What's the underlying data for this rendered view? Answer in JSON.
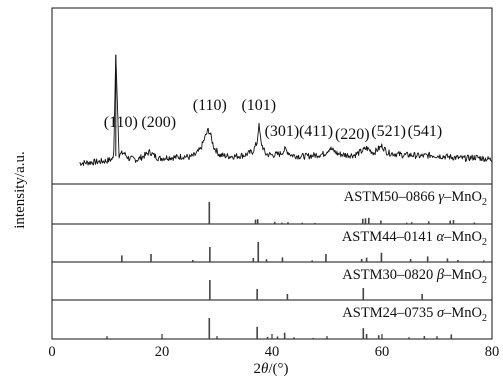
{
  "chart_data": {
    "type": "line",
    "ylabel": "intensity/a.u.",
    "xlabel_prefix": "2",
    "xlabel_theta": "θ",
    "xlabel_suffix": "/(°)",
    "xlim": [
      0,
      80
    ],
    "xticks": [
      "0",
      "20",
      "40",
      "60",
      "80"
    ],
    "grid": false,
    "measured_pattern": {
      "name": "",
      "x": [
        5.0,
        8.0,
        10.0,
        11.2,
        11.6,
        12.2,
        13.0,
        14.0,
        15.5,
        17.0,
        17.8,
        18.4,
        19.5,
        21.0,
        22.5,
        24.0,
        25.0,
        26.0,
        27.0,
        27.8,
        28.4,
        28.8,
        29.4,
        30.5,
        32.0,
        33.5,
        35.0,
        36.5,
        37.3,
        37.6,
        38.0,
        38.8,
        40.0,
        41.5,
        42.4,
        43.5,
        45.0,
        46.5,
        48.0,
        49.5,
        50.5,
        52.0,
        53.5,
        55.0,
        56.2,
        57.2,
        58.5,
        60.0,
        61.0,
        62.5,
        64.0,
        65.5,
        67.0,
        69.0,
        71.0,
        73.0,
        75.0,
        77.0,
        80.0
      ],
      "y": [
        6,
        7,
        8,
        10,
        100,
        13,
        15,
        10,
        9,
        13,
        16,
        13,
        10,
        11,
        11,
        12,
        11,
        13,
        18,
        28,
        35,
        31,
        20,
        13,
        12,
        12,
        13,
        16,
        24,
        40,
        24,
        14,
        13,
        14,
        18,
        13,
        12,
        12,
        13,
        14,
        19,
        14,
        13,
        13,
        16,
        19,
        15,
        21,
        15,
        14,
        13,
        13,
        12,
        13,
        12,
        11,
        10,
        11,
        9
      ]
    },
    "peak_labels": [
      {
        "text": "(110)",
        "x": 12.5
      },
      {
        "text": "(200)",
        "x": 19.4
      },
      {
        "text": "(110)",
        "x": 28.7
      },
      {
        "text": "(101)",
        "x": 37.6
      },
      {
        "text": "(301)",
        "x": 41.8
      },
      {
        "text": "(411)",
        "x": 48.0
      },
      {
        "text": "(220)",
        "x": 54.6
      },
      {
        "text": "(521)",
        "x": 61.2
      },
      {
        "text": "(541)",
        "x": 67.8
      }
    ],
    "reference_patterns": [
      {
        "card": "ASTM50–0866",
        "phase": "γ",
        "compound": "–MnO",
        "subscript": "2",
        "x": [
          28.6,
          37.0,
          37.4,
          40.5,
          41.8,
          42.9,
          45.5,
          47.8,
          56.5,
          57.0,
          57.6,
          59.8,
          64.5,
          65.4,
          68.5,
          72.4,
          73.0,
          76.8
        ],
        "y": [
          100,
          20,
          22,
          10,
          6,
          8,
          6,
          5,
          24,
          26,
          28,
          16,
          6,
          8,
          12,
          16,
          18,
          7
        ]
      },
      {
        "card": "ASTM44–0141",
        "phase": "α",
        "compound": "–MnO",
        "subscript": "2",
        "x": [
          12.7,
          18.0,
          25.6,
          28.7,
          36.6,
          37.5,
          39.0,
          41.9,
          47.3,
          49.8,
          56.3,
          57.2,
          59.9,
          65.2,
          68.3,
          71.9,
          73.8,
          78.5
        ],
        "y": [
          33,
          40,
          10,
          75,
          20,
          100,
          14,
          23,
          8,
          40,
          15,
          22,
          46,
          15,
          28,
          18,
          10,
          8
        ]
      },
      {
        "card": "ASTM30–0820",
        "phase": "β",
        "compound": "–MnO",
        "subscript": "2",
        "x": [
          28.7,
          37.3,
          42.8,
          56.6,
          67.3
        ],
        "y": [
          100,
          55,
          30,
          60,
          30
        ]
      },
      {
        "card": "ASTM24–0735",
        "phase": "σ",
        "compound": "–MnO",
        "subscript": "2",
        "x": [
          28.6,
          37.3,
          39.2,
          41.0,
          42.3,
          44.0,
          47.5,
          56.6,
          57.2,
          59.4,
          64.9,
          67.7,
          72.6
        ],
        "y": [
          100,
          58,
          10,
          12,
          30,
          8,
          5,
          52,
          24,
          18,
          8,
          14,
          22
        ]
      }
    ]
  }
}
